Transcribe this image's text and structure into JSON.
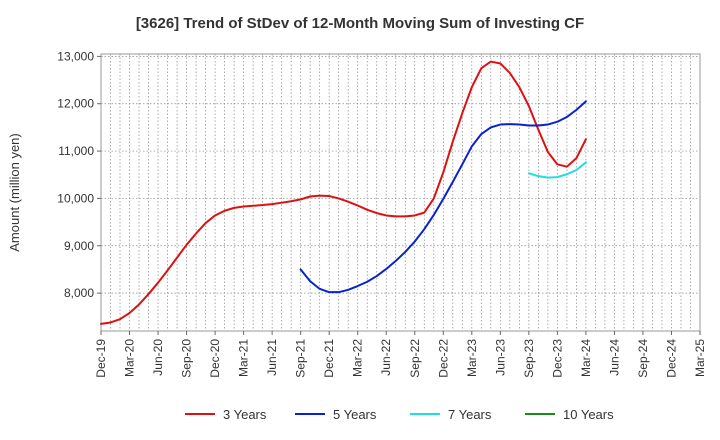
{
  "chart_data": {
    "type": "line",
    "title": "[3626]  Trend of StDev of 12-Month Moving Sum of Investing CF",
    "xlabel": "",
    "ylabel": "Amount (million yen)",
    "ylim": [
      7200,
      13050
    ],
    "yticks": [
      8000,
      9000,
      10000,
      11000,
      12000,
      13000
    ],
    "ytick_labels": [
      "8,000",
      "9,000",
      "10,000",
      "11,000",
      "12,000",
      "13,000"
    ],
    "x_range": [
      "2019-12",
      "2025-03"
    ],
    "xtick_labels": [
      "Dec-19",
      "Mar-20",
      "Jun-20",
      "Sep-20",
      "Dec-20",
      "Mar-21",
      "Jun-21",
      "Sep-21",
      "Dec-21",
      "Mar-22",
      "Jun-22",
      "Sep-22",
      "Dec-22",
      "Mar-23",
      "Jun-23",
      "Sep-23",
      "Dec-23",
      "Mar-24",
      "Jun-24",
      "Sep-24",
      "Dec-24",
      "Mar-25"
    ],
    "grid": true,
    "legend_position": "bottom",
    "series": [
      {
        "name": "3 Years",
        "color": "#dd1111",
        "x": [
          "2019-12",
          "2020-01",
          "2020-02",
          "2020-03",
          "2020-04",
          "2020-05",
          "2020-06",
          "2020-07",
          "2020-08",
          "2020-09",
          "2020-10",
          "2020-11",
          "2020-12",
          "2021-01",
          "2021-02",
          "2021-03",
          "2021-04",
          "2021-05",
          "2021-06",
          "2021-07",
          "2021-08",
          "2021-09",
          "2021-10",
          "2021-11",
          "2021-12",
          "2022-01",
          "2022-02",
          "2022-03",
          "2022-04",
          "2022-05",
          "2022-06",
          "2022-07",
          "2022-08",
          "2022-09",
          "2022-10",
          "2022-11",
          "2022-12",
          "2023-01",
          "2023-02",
          "2023-03",
          "2023-04",
          "2023-05",
          "2023-06",
          "2023-07",
          "2023-08",
          "2023-09",
          "2023-10",
          "2023-11",
          "2023-12",
          "2024-01",
          "2024-02",
          "2024-03"
        ],
        "values": [
          7350,
          7380,
          7450,
          7580,
          7760,
          7980,
          8220,
          8480,
          8750,
          9020,
          9260,
          9480,
          9640,
          9740,
          9800,
          9830,
          9845,
          9860,
          9880,
          9910,
          9940,
          9980,
          10040,
          10060,
          10050,
          10000,
          9930,
          9850,
          9760,
          9690,
          9640,
          9620,
          9620,
          9640,
          9700,
          10000,
          10550,
          11200,
          11800,
          12350,
          12750,
          12890,
          12850,
          12650,
          12350,
          11950,
          11450,
          10980,
          10720,
          10670,
          10850,
          11250
        ]
      },
      {
        "name": "5 Years",
        "color": "#0a22cc",
        "x": [
          "2021-09",
          "2021-10",
          "2021-11",
          "2021-12",
          "2022-01",
          "2022-02",
          "2022-03",
          "2022-04",
          "2022-05",
          "2022-06",
          "2022-07",
          "2022-08",
          "2022-09",
          "2022-10",
          "2022-11",
          "2022-12",
          "2023-01",
          "2023-02",
          "2023-03",
          "2023-04",
          "2023-05",
          "2023-06",
          "2023-07",
          "2023-08",
          "2023-09",
          "2023-10",
          "2023-11",
          "2023-12",
          "2024-01",
          "2024-02",
          "2024-03"
        ],
        "values": [
          8500,
          8250,
          8090,
          8020,
          8020,
          8070,
          8150,
          8240,
          8360,
          8510,
          8680,
          8870,
          9090,
          9350,
          9650,
          9990,
          10350,
          10720,
          11100,
          11360,
          11500,
          11560,
          11570,
          11560,
          11540,
          11540,
          11560,
          11620,
          11720,
          11870,
          12050
        ]
      },
      {
        "name": "7 Years",
        "color": "#22dddd",
        "x": [
          "2023-09",
          "2023-10",
          "2023-11",
          "2023-12",
          "2024-01",
          "2024-02",
          "2024-03"
        ],
        "values": [
          10530,
          10470,
          10440,
          10450,
          10510,
          10600,
          10760
        ]
      },
      {
        "name": "10 Years",
        "color": "#1a8a1a",
        "x": [],
        "values": []
      }
    ]
  }
}
